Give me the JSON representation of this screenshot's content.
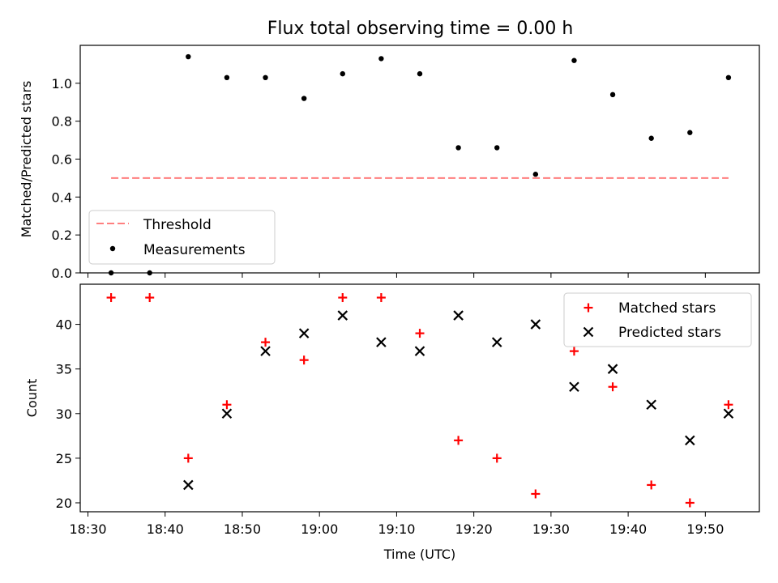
{
  "figure": {
    "title": "Flux total observing time = 0.00 h"
  },
  "chart_data": [
    {
      "type": "scatter",
      "panel": "top",
      "ylabel": "Matched/Predicted stars",
      "xlim": [
        "18:29",
        "19:57"
      ],
      "ylim": [
        0,
        1.2
      ],
      "yticks": [
        0.0,
        0.2,
        0.4,
        0.6,
        0.8,
        1.0
      ],
      "ytick_labels": [
        "0.0",
        "0.2",
        "0.4",
        "0.6",
        "0.8",
        "1.0"
      ],
      "legend": {
        "placement": "lower-left",
        "entries": [
          "Threshold",
          "Measurements"
        ]
      },
      "series": [
        {
          "name": "Threshold",
          "kind": "line",
          "style": "dashed",
          "color": "#ff7f7f",
          "x": [
            "18:33",
            "19:53"
          ],
          "y": [
            0.5,
            0.5
          ]
        },
        {
          "name": "Measurements",
          "kind": "points",
          "color": "#000000",
          "x": [
            "18:33",
            "18:38",
            "18:43",
            "18:48",
            "18:53",
            "18:58",
            "19:03",
            "19:08",
            "19:13",
            "19:18",
            "19:23",
            "19:28",
            "19:33",
            "19:38",
            "19:43",
            "19:48",
            "19:53"
          ],
          "y": [
            0.0,
            0.0,
            1.14,
            1.03,
            1.03,
            0.92,
            1.05,
            1.13,
            1.05,
            0.66,
            0.66,
            0.52,
            1.12,
            0.94,
            0.71,
            0.74,
            1.03
          ]
        }
      ]
    },
    {
      "type": "scatter",
      "panel": "bottom",
      "xlabel": "Time (UTC)",
      "ylabel": "Count",
      "xlim": [
        "18:29",
        "19:57"
      ],
      "ylim": [
        19,
        44.5
      ],
      "xticks": [
        "18:30",
        "18:40",
        "18:50",
        "19:00",
        "19:10",
        "19:20",
        "19:30",
        "19:40",
        "19:50"
      ],
      "yticks": [
        20,
        25,
        30,
        35,
        40
      ],
      "ytick_labels": [
        "20",
        "25",
        "30",
        "35",
        "40"
      ],
      "legend": {
        "placement": "upper-right",
        "entries": [
          "Matched stars",
          "Predicted stars"
        ]
      },
      "series": [
        {
          "name": "Matched stars",
          "marker": "plus",
          "color": "#ff0000",
          "x": [
            "18:33",
            "18:38",
            "18:43",
            "18:48",
            "18:53",
            "18:58",
            "19:03",
            "19:08",
            "19:13",
            "19:18",
            "19:23",
            "19:28",
            "19:33",
            "19:38",
            "19:43",
            "19:48",
            "19:53"
          ],
          "y": [
            43,
            43,
            25,
            31,
            38,
            36,
            43,
            43,
            39,
            27,
            25,
            21,
            37,
            33,
            22,
            20,
            31
          ]
        },
        {
          "name": "Predicted stars",
          "marker": "x",
          "color": "#000000",
          "x": [
            "18:43",
            "18:48",
            "18:53",
            "18:58",
            "19:03",
            "19:08",
            "19:13",
            "19:18",
            "19:23",
            "19:28",
            "19:33",
            "19:38",
            "19:43",
            "19:48",
            "19:53"
          ],
          "y": [
            22,
            30,
            37,
            39,
            41,
            38,
            37,
            41,
            38,
            40,
            33,
            35,
            31,
            27,
            30
          ]
        }
      ]
    }
  ]
}
